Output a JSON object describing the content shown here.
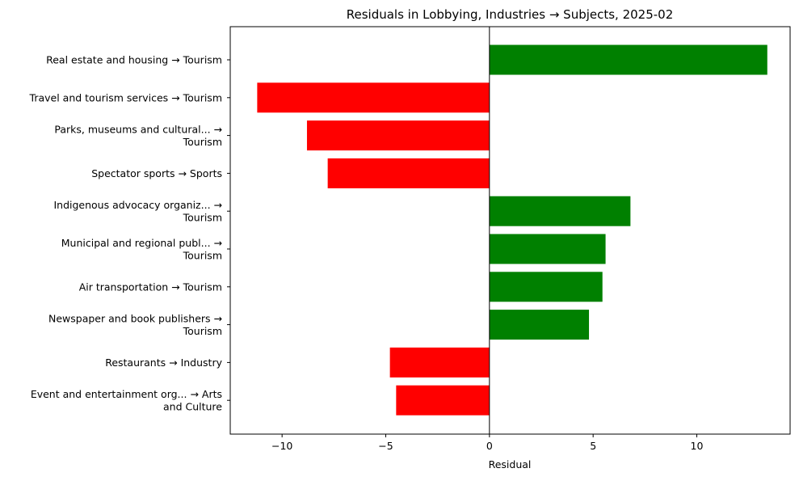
{
  "chart_data": {
    "type": "bar",
    "orientation": "horizontal",
    "title": "Residuals in Lobbying, Industries → Subjects, 2025-02",
    "xlabel": "Residual",
    "ylabel": "",
    "xlim": [
      -12.5,
      14.5
    ],
    "xticks": [
      -10,
      -5,
      0,
      5,
      10
    ],
    "xtick_labels": [
      "−10",
      "−5",
      "0",
      "5",
      "10"
    ],
    "grid": false,
    "zero_line": true,
    "positive_color": "#008000",
    "negative_color": "#ff0000",
    "categories": [
      [
        "Real estate and housing → Tourism"
      ],
      [
        "Travel and tourism services → Tourism"
      ],
      [
        "Parks, museums and cultural... →",
        "Tourism"
      ],
      [
        "Spectator sports → Sports"
      ],
      [
        "Indigenous advocacy organiz... →",
        "Tourism"
      ],
      [
        "Municipal and regional publ... →",
        "Tourism"
      ],
      [
        "Air transportation → Tourism"
      ],
      [
        "Newspaper and book publishers →",
        "Tourism"
      ],
      [
        "Restaurants → Industry"
      ],
      [
        "Event and entertainment org... → Arts",
        "and Culture"
      ]
    ],
    "values": [
      13.4,
      -11.2,
      -8.8,
      -7.8,
      6.8,
      5.6,
      5.45,
      4.8,
      -4.8,
      -4.5
    ]
  }
}
